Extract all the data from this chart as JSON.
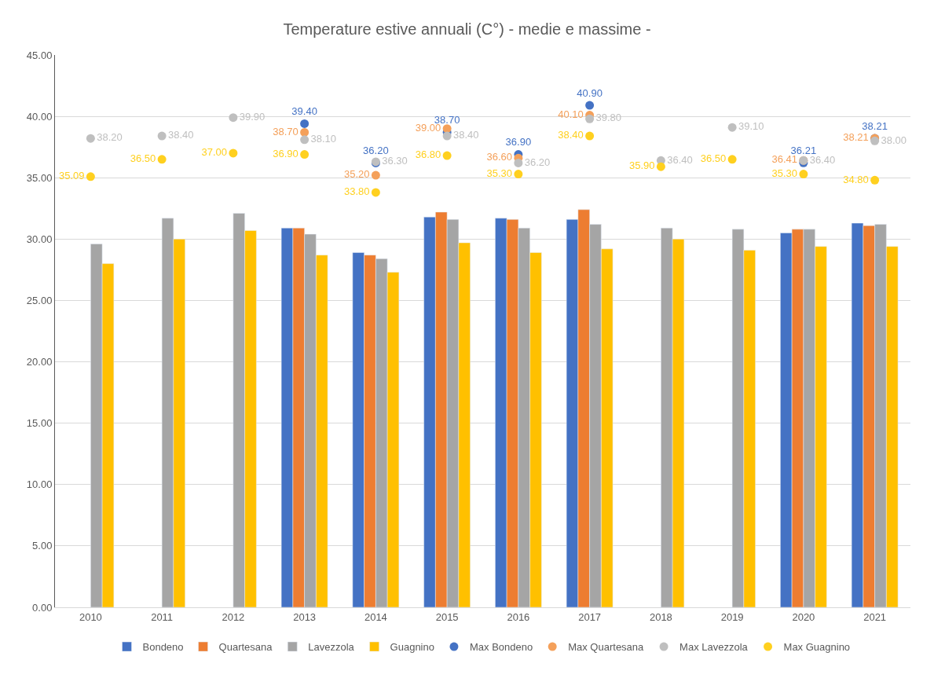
{
  "chart_data": {
    "type": "bar",
    "title": "Temperature estive annuali (C°) - medie e massime -",
    "categories": [
      "2010",
      "2011",
      "2012",
      "2013",
      "2014",
      "2015",
      "2016",
      "2017",
      "2018",
      "2019",
      "2020",
      "2021"
    ],
    "series": [
      {
        "name": "Bondeno",
        "color": "#4472c4",
        "values": [
          null,
          null,
          null,
          30.9,
          28.9,
          31.8,
          31.7,
          31.6,
          null,
          null,
          30.5,
          31.3
        ]
      },
      {
        "name": "Quartesana",
        "color": "#ed7d31",
        "values": [
          null,
          null,
          null,
          30.9,
          28.7,
          32.2,
          31.6,
          32.4,
          null,
          null,
          30.8,
          31.1
        ]
      },
      {
        "name": "Lavezzola",
        "color": "#a5a5a5",
        "values": [
          29.6,
          31.7,
          32.1,
          30.4,
          28.4,
          31.6,
          30.9,
          31.2,
          30.9,
          30.8,
          30.8,
          31.2
        ]
      },
      {
        "name": "Guagnino",
        "color": "#ffc000",
        "values": [
          28.0,
          30.0,
          30.7,
          28.7,
          27.3,
          29.7,
          28.9,
          29.2,
          30.0,
          29.1,
          29.4,
          29.4
        ]
      },
      {
        "name": "Max Bondeno",
        "type": "scatter",
        "marker": "circle",
        "color": "#4472c4",
        "values": [
          null,
          null,
          null,
          39.4,
          36.2,
          38.7,
          36.9,
          40.9,
          null,
          null,
          36.21,
          38.21
        ],
        "value_labels": [
          null,
          null,
          null,
          "39.40",
          "36.20",
          "38.70",
          "36.90",
          "40.90",
          null,
          null,
          "36.21",
          "38.21"
        ]
      },
      {
        "name": "Max Quartesana",
        "type": "scatter",
        "marker": "circle",
        "color": "#f4a05a",
        "values": [
          null,
          null,
          null,
          38.7,
          35.2,
          39.0,
          36.6,
          40.1,
          null,
          null,
          36.41,
          38.21
        ],
        "value_labels": [
          null,
          null,
          null,
          "38.70",
          "35.20",
          "39.00",
          "36.60",
          "40.10",
          null,
          null,
          "36.41",
          "38.21"
        ]
      },
      {
        "name": "Max Lavezzola",
        "type": "scatter",
        "marker": "circle",
        "color": "#bfbfbf",
        "values": [
          38.2,
          38.4,
          39.9,
          38.1,
          36.3,
          38.4,
          36.2,
          39.8,
          36.4,
          39.1,
          36.4,
          38.0
        ],
        "value_labels": [
          "38.20",
          "38.40",
          "39.90",
          "38.10",
          "36.30",
          "38.40",
          "36.20",
          "39.80",
          "36.40",
          "39.10",
          "36.40",
          "38.00"
        ]
      },
      {
        "name": "Max Guagnino",
        "type": "scatter",
        "marker": "circle",
        "color": "#ffd01f",
        "values": [
          35.09,
          36.5,
          37.0,
          36.9,
          33.8,
          36.8,
          35.3,
          38.4,
          35.9,
          36.5,
          35.3,
          34.8
        ],
        "value_labels": [
          "35.09",
          "36.50",
          "37.00",
          "36.90",
          "33.80",
          "36.80",
          "35.30",
          "38.40",
          "35.90",
          "36.50",
          "35.30",
          "34.80"
        ]
      }
    ],
    "ylim": [
      0,
      45
    ],
    "yticks": [
      {
        "value": 0,
        "label": "0.00"
      },
      {
        "value": 5,
        "label": "5.00"
      },
      {
        "value": 10,
        "label": "10.00"
      },
      {
        "value": 15,
        "label": "15.00"
      },
      {
        "value": 20,
        "label": "20.00"
      },
      {
        "value": 25,
        "label": "25.00"
      },
      {
        "value": 30,
        "label": "30.00"
      },
      {
        "value": 35,
        "label": "35.00"
      },
      {
        "value": 40,
        "label": "40.00"
      },
      {
        "value": 45,
        "label": "45.00"
      }
    ],
    "grid": "y",
    "legend": "bottom"
  }
}
